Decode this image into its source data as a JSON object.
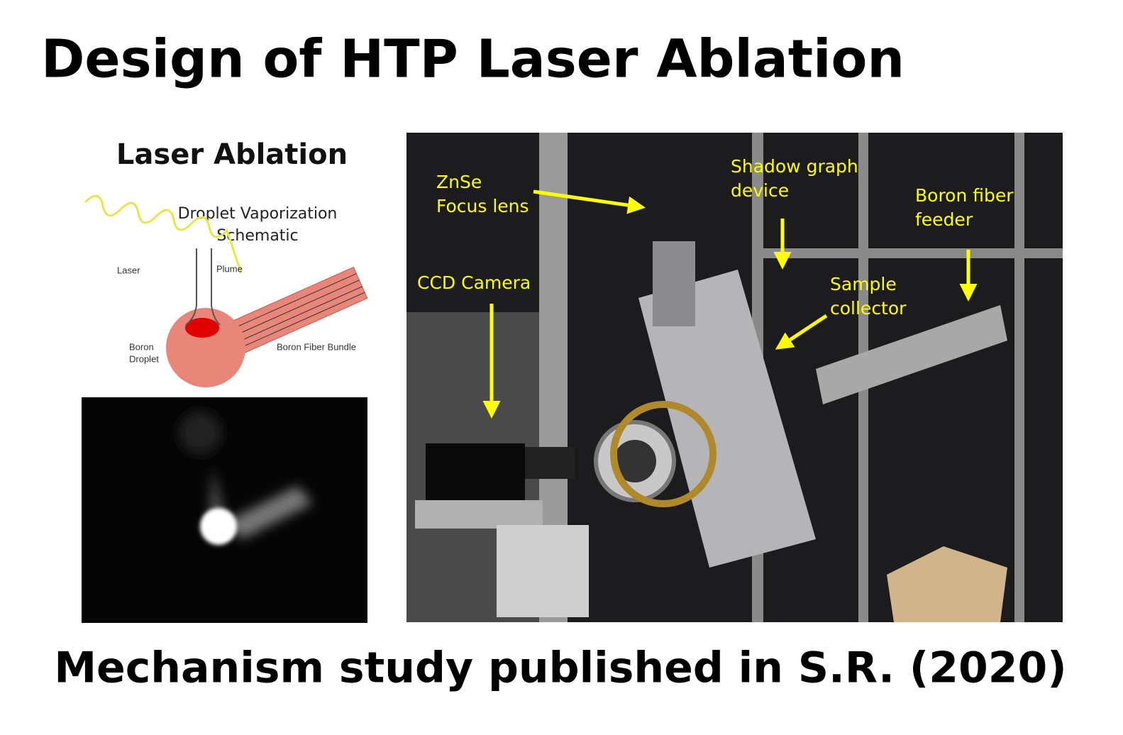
{
  "title": "Design of HTP Laser Ablation",
  "schematic": {
    "title": "Laser Ablation",
    "heading": [
      "Droplet Vaporization",
      "Schematic"
    ],
    "labels": {
      "laser": "Laser",
      "plume": "Plume",
      "droplet": [
        "Boron",
        "Droplet"
      ],
      "bundle": "Boron Fiber Bundle"
    }
  },
  "photo": {
    "annotations": [
      {
        "lines": [
          "ZnSe",
          "Focus lens"
        ]
      },
      {
        "lines": [
          "Shadow graph",
          "device"
        ]
      },
      {
        "lines": [
          "Boron fiber",
          "feeder"
        ]
      },
      {
        "lines": [
          "CCD Camera"
        ]
      },
      {
        "lines": [
          "Sample",
          "collector"
        ]
      }
    ]
  },
  "footer": "Mechanism study published in S.R. (2020)"
}
